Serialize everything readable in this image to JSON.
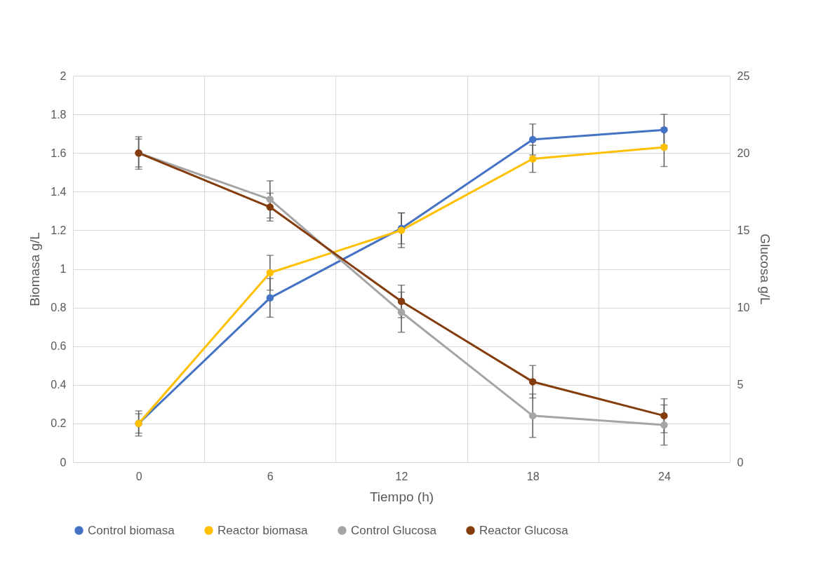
{
  "chart_data": {
    "type": "line",
    "xlabel": "Tiempo (h)",
    "ylabel": "Biomasa g/L",
    "y2label": "Glucosa g/L",
    "categories": [
      "0",
      "6",
      "12",
      "18",
      "24"
    ],
    "series": [
      {
        "name": "Control biomasa",
        "color": "#4472c4",
        "values": [
          0.2,
          0.85,
          1.21,
          1.67,
          1.72
        ],
        "errors": [
          0.065,
          0.1,
          0.08,
          0.08,
          0.08
        ]
      },
      {
        "name": "Reactor biomasa",
        "color": "#ffc000",
        "values": [
          0.2,
          0.98,
          1.2,
          1.57,
          1.63
        ],
        "errors": [
          0.05,
          0.09,
          0.09,
          0.07,
          0.1
        ]
      },
      {
        "name": "Control Glucosa",
        "color": "#a5a5a5",
        "axis": "y2",
        "values": [
          20.0,
          17.0,
          9.7,
          3.0,
          2.4
        ],
        "errors": [
          0.9,
          1.2,
          1.3,
          1.4,
          1.3
        ]
      },
      {
        "name": "Reactor Glucosa",
        "color": "#843c0c",
        "axis": "y2",
        "values": [
          20.0,
          16.5,
          10.4,
          5.2,
          3.0
        ],
        "errors": [
          1.05,
          0.9,
          1.05,
          1.05,
          1.1
        ]
      }
    ],
    "ylim": [
      0,
      2
    ],
    "yticks": [
      0,
      0.2,
      0.4,
      0.6,
      0.8,
      1,
      1.2,
      1.4,
      1.6,
      1.8,
      2
    ],
    "y2lim": [
      0,
      25
    ],
    "y2ticks": [
      0,
      5,
      10,
      15,
      20,
      25
    ],
    "grid": true,
    "legend": "bottom",
    "marker": "circle",
    "line_style": "solid"
  }
}
